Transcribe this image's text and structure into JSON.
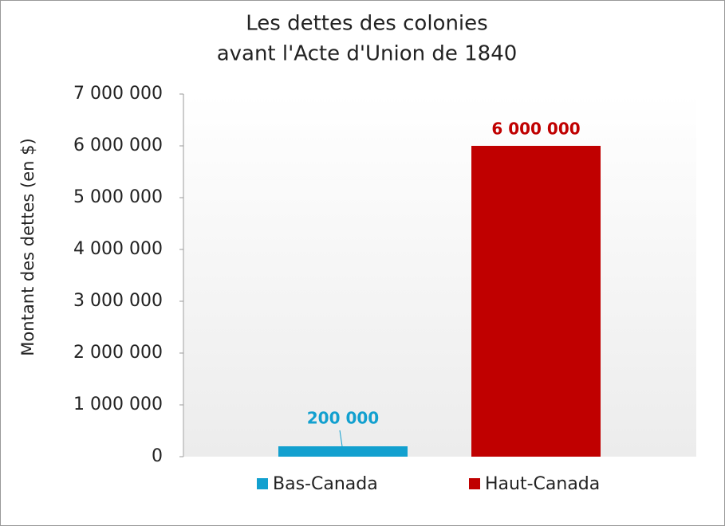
{
  "chart_data": {
    "type": "bar",
    "title": [
      "Les dettes des colonies",
      "avant l'Acte d'Union de 1840"
    ],
    "y_label": "Montant des dettes (en $)",
    "categories": [
      "Bas-Canada",
      "Haut-Canada"
    ],
    "values": [
      200000,
      6000000
    ],
    "value_labels": [
      "200 000",
      "6 000 000"
    ],
    "colors": [
      "#12a0cf",
      "#c00000"
    ],
    "ylim": [
      0,
      7000000
    ],
    "yticks": [
      0,
      {
        "value": 1000000,
        "label": "1 000 000"
      },
      {
        "value": 2000000,
        "label": "2 000 000"
      },
      {
        "value": 3000000,
        "label": "3 000 000"
      },
      {
        "value": 4000000,
        "label": "4 000 000"
      },
      {
        "value": 5000000,
        "label": "5 000 000"
      },
      {
        "value": 6000000,
        "label": "6 000 000"
      },
      {
        "value": 7000000,
        "label": "7 000 000"
      }
    ],
    "legend": "bottom"
  }
}
